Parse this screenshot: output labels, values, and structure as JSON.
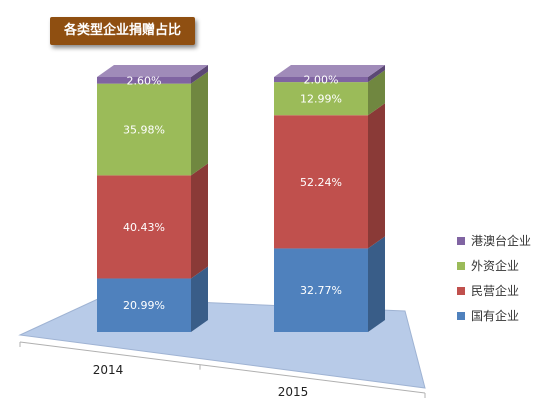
{
  "chart_data": {
    "type": "bar",
    "stacked": true,
    "title": "各类型企业捐赠占比",
    "categories": [
      "2014",
      "2015"
    ],
    "series": [
      {
        "name": "国有企业",
        "values": [
          20.99,
          32.77
        ],
        "labels": [
          "20.99%",
          "32.77%"
        ],
        "color": "#4f81bd"
      },
      {
        "name": "民营企业",
        "values": [
          40.43,
          52.24
        ],
        "labels": [
          "40.43%",
          "52.24%"
        ],
        "color": "#c0504d"
      },
      {
        "name": "外资企业",
        "values": [
          35.98,
          12.99
        ],
        "labels": [
          "35.98%",
          "12.99%"
        ],
        "color": "#9bbb59"
      },
      {
        "name": "港澳台企业",
        "values": [
          2.6,
          2.0
        ],
        "labels": [
          "2.60%",
          "2.00%"
        ],
        "color": "#8064a2"
      }
    ],
    "ylim": [
      0,
      100
    ],
    "legend_position": "right",
    "grid": false,
    "style": "3d-column"
  }
}
